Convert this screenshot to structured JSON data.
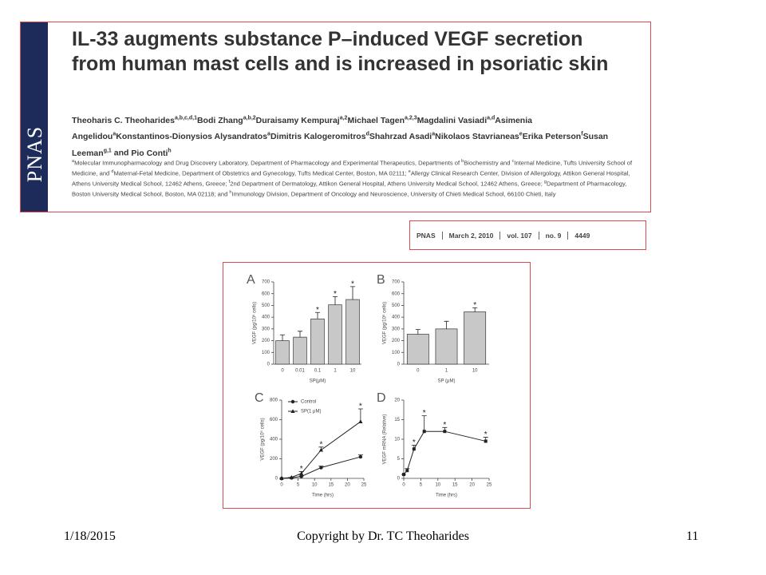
{
  "header": {
    "logo": "PNAS",
    "title": "IL-33 augments substance P–induced VEGF secretion from human mast cells and is increased in psoriatic skin",
    "authors": [
      {
        "name": "Theoharis C. Theoharides",
        "affil": "a,b,c,d,1"
      },
      {
        "name": "Bodi Zhang",
        "affil": "a,b,2"
      },
      {
        "name": "Duraisamy Kempuraj",
        "affil": "a,2"
      },
      {
        "name": "Michael Tagen",
        "affil": "a,2,3"
      },
      {
        "name": "Magdalini Vasiadi",
        "affil": "a,d"
      },
      {
        "name": "Asimenia Angelidou",
        "affil": "a"
      },
      {
        "name": "Konstantinos-Dionysios Alysandratos",
        "affil": "a"
      },
      {
        "name": "Dimitris Kalogeromitros",
        "affil": "d"
      },
      {
        "name": "Shahrzad Asadi",
        "affil": "a"
      },
      {
        "name": "Nikolaos Stavrianeas",
        "affil": "e"
      },
      {
        "name": "Erika Peterson",
        "affil": "f"
      },
      {
        "name": "Susan Leeman",
        "affil": "g,1"
      },
      {
        "name": "Pio Conti",
        "affil": "h"
      }
    ],
    "conjunction": "and",
    "affiliations": [
      {
        "sup": "a",
        "text": "Molecular Immunopharmacology and Drug Discovery Laboratory, Department of Pharmacology and Experimental Therapeutics, Departments of "
      },
      {
        "sup": "b",
        "text": "Biochemistry and "
      },
      {
        "sup": "c",
        "text": "Internal Medicine, Tufts University School of Medicine, and "
      },
      {
        "sup": "d",
        "text": "Maternal-Fetal Medicine, Department of Obstetrics and Gynecology, Tufts Medical Center, Boston, MA 02111; "
      },
      {
        "sup": "e",
        "text": "Allergy Clinical Research Center, Division of Allergology, Attikon General Hospital, Athens University Medical School, 12462 Athens, Greece; "
      },
      {
        "sup": "f",
        "text": "2nd Department of Dermatology, Attikon General Hospital, Athens University Medical School, 12462 Athens, Greece; "
      },
      {
        "sup": "g",
        "text": "Department of Pharmacology, Boston University Medical School, Boston, MA 02118; and "
      },
      {
        "sup": "h",
        "text": "Immunology Division, Department of Oncology and Neuroscience, University of Chieti Medical School, 66100 Chieti, Italy"
      }
    ]
  },
  "citation": [
    "PNAS",
    "March 2, 2010",
    "vol. 107",
    "no. 9",
    "4449"
  ],
  "chart_data": [
    {
      "type": "bar",
      "label": "A",
      "categories": [
        "0",
        "0.01",
        "0.1",
        "1",
        "10"
      ],
      "values": [
        200,
        230,
        385,
        505,
        550
      ],
      "errors": [
        50,
        50,
        55,
        70,
        110
      ],
      "annotations": [
        null,
        null,
        "*",
        "*",
        "*"
      ],
      "color": "#c8c8c8",
      "ylim": [
        0,
        700
      ],
      "yticks": [
        0,
        100,
        200,
        300,
        400,
        500,
        600,
        700
      ],
      "xlabel": "SP(μM)",
      "ylabel": "VEGF (pg/10⁶ cells)"
    },
    {
      "type": "bar",
      "label": "B",
      "categories": [
        "0",
        "1",
        "10"
      ],
      "values": [
        255,
        300,
        445
      ],
      "errors": [
        40,
        65,
        35
      ],
      "annotations": [
        null,
        null,
        "*"
      ],
      "color": "#c8c8c8",
      "ylim": [
        0,
        700
      ],
      "yticks": [
        0,
        100,
        200,
        300,
        400,
        500,
        600,
        700
      ],
      "xlabel": "SP (μM)",
      "ylabel": "VEGF (pg/10⁶ cells)"
    },
    {
      "type": "line",
      "label": "C",
      "x": [
        0,
        3,
        6,
        12,
        24
      ],
      "series": [
        {
          "name": "Control",
          "color": "#222",
          "marker": "circle",
          "values": [
            0,
            5,
            20,
            110,
            220
          ],
          "errors": [
            0,
            0,
            5,
            15,
            20
          ]
        },
        {
          "name": "SP(1 μM)",
          "color": "#222",
          "marker": "triangle",
          "values": [
            0,
            10,
            50,
            290,
            580
          ],
          "errors": [
            0,
            0,
            20,
            30,
            130
          ],
          "annotations": [
            null,
            null,
            "*",
            "*",
            "*"
          ]
        }
      ],
      "xlim": [
        0,
        25
      ],
      "xticks": [
        0,
        5,
        10,
        15,
        20,
        25
      ],
      "ylim": [
        0,
        800
      ],
      "yticks": [
        0,
        200,
        400,
        600,
        800
      ],
      "xlabel": "Time (hrs)",
      "ylabel": "VEGF (pg/10⁶ cells)",
      "legend": true
    },
    {
      "type": "line",
      "label": "D",
      "x": [
        0,
        1,
        3,
        6,
        12,
        24
      ],
      "series": [
        {
          "color": "#222",
          "marker": "square",
          "values": [
            1,
            2,
            7.5,
            12,
            12,
            9.5
          ],
          "errors": [
            0,
            0.5,
            1,
            4,
            1,
            1
          ],
          "annotations": [
            null,
            null,
            "*",
            "*",
            "*",
            "*"
          ]
        }
      ],
      "xlim": [
        0,
        25
      ],
      "xticks": [
        0,
        5,
        10,
        15,
        20,
        25
      ],
      "ylim": [
        0,
        20
      ],
      "yticks": [
        0,
        5,
        10,
        15,
        20
      ],
      "xlabel": "Time (hrs)",
      "ylabel": "VEGF mRNA (Relative)",
      "legend": false
    }
  ],
  "footer": {
    "date": "1/18/2015",
    "copyright": "Copyright by Dr. TC Theoharides",
    "page": "11"
  }
}
